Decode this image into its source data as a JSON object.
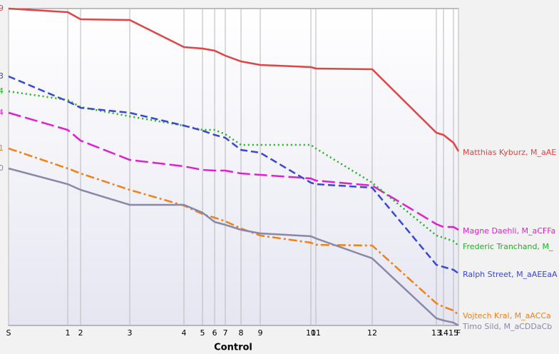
{
  "chart_data": {
    "type": "line",
    "x_label": "Control",
    "categories": [
      "S",
      "1",
      "2",
      "3",
      "4",
      "5",
      "6",
      "7",
      "8",
      "9",
      "10",
      "11",
      "12",
      "13",
      "14",
      "15",
      "F"
    ],
    "x": [
      0,
      83,
      101,
      170,
      246,
      272,
      289,
      304,
      326,
      353,
      424,
      431,
      510,
      600,
      610,
      624,
      631
    ],
    "xlim": [
      0,
      631
    ],
    "ylim": [
      0,
      444
    ],
    "grid": true,
    "series": [
      {
        "name": "Matthias Kyburz, M_aAE",
        "start_label": "9",
        "color": "#e04444",
        "style": "solid",
        "values": [
          444,
          439,
          429,
          428,
          390,
          388,
          385,
          378,
          370,
          365,
          362,
          360,
          359,
          270,
          267,
          256,
          244
        ]
      },
      {
        "name": "Magne Daehli, M_aCFFa",
        "start_label": "4",
        "color": "#e020d0",
        "style": "longdash",
        "values": [
          298,
          274,
          259,
          232,
          223,
          218,
          217,
          217,
          213,
          211,
          206,
          203,
          196,
          142,
          138,
          138,
          134
        ]
      },
      {
        "name": "Frederic Tranchand, M_",
        "start_label": "4",
        "color": "#20b020",
        "style": "dotted",
        "values": [
          328,
          316,
          306,
          293,
          280,
          274,
          274,
          268,
          253,
          253,
          253,
          248,
          200,
          126,
          123,
          118,
          112
        ]
      },
      {
        "name": "Ralph Street, M_aAEEaA",
        "start_label": "3",
        "color": "#3848d0",
        "style": "dashed",
        "values": [
          349,
          314,
          305,
          298,
          280,
          273,
          267,
          263,
          246,
          242,
          200,
          198,
          193,
          85,
          82,
          78,
          73
        ]
      },
      {
        "name": "Vojtech Kral, M_aACCa",
        "start_label": "1",
        "color": "#f08018",
        "style": "dashdot",
        "values": [
          248,
          220,
          213,
          190,
          168,
          156,
          151,
          146,
          136,
          126,
          116,
          113,
          112,
          31,
          26,
          21,
          15
        ]
      },
      {
        "name": "Timo Sild, M_aCDDaCb",
        "start_label": "0",
        "color": "#8888a8",
        "style": "solid",
        "values": [
          220,
          198,
          190,
          169,
          169,
          158,
          145,
          141,
          134,
          129,
          125,
          122,
          94,
          10,
          7,
          4,
          0
        ]
      }
    ]
  }
}
